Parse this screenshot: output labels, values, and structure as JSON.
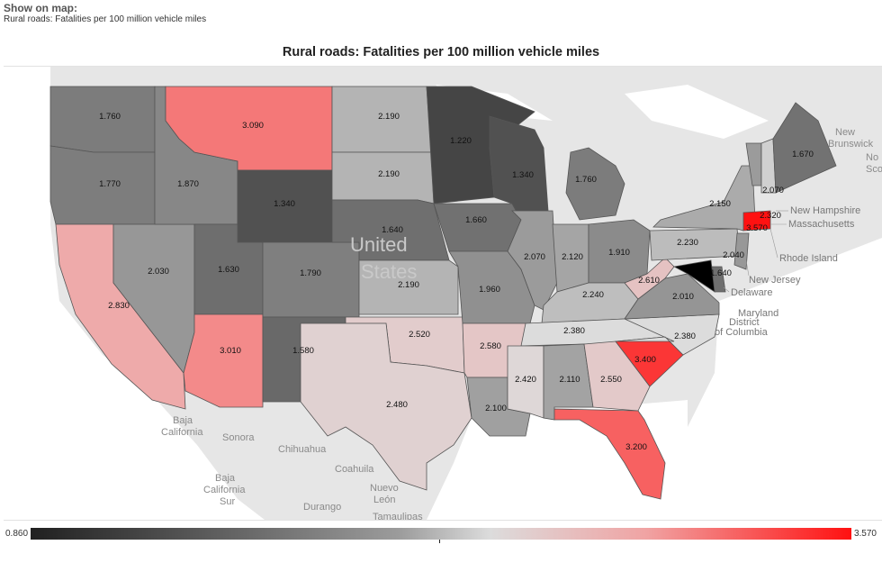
{
  "header": {
    "show_label": "Show on map:",
    "selected_metric": "Rural roads: Fatalities per 100 million vehicle miles"
  },
  "map": {
    "title": "Rural roads: Fatalities per 100 million vehicle miles",
    "colors": {
      "low": "#202020",
      "mid": "#dcdcdc",
      "high": "#ff1111",
      "land": "#e4e4e4",
      "water": "#ffffff"
    },
    "states": [
      {
        "code": "WA",
        "value": "1.760"
      },
      {
        "code": "OR",
        "value": "1.770"
      },
      {
        "code": "CA",
        "value": "2.830"
      },
      {
        "code": "ID",
        "value": "1.870"
      },
      {
        "code": "NV",
        "value": "2.030"
      },
      {
        "code": "MT",
        "value": "3.090"
      },
      {
        "code": "WY",
        "value": "1.340"
      },
      {
        "code": "UT",
        "value": "1.630"
      },
      {
        "code": "AZ",
        "value": "3.010"
      },
      {
        "code": "CO",
        "value": "1.790"
      },
      {
        "code": "NM",
        "value": "1.580"
      },
      {
        "code": "ND",
        "value": "2.190"
      },
      {
        "code": "SD",
        "value": "2.190"
      },
      {
        "code": "NE",
        "value": "1.640"
      },
      {
        "code": "KS",
        "value": "2.190"
      },
      {
        "code": "OK",
        "value": "2.520"
      },
      {
        "code": "TX",
        "value": "2.480"
      },
      {
        "code": "MN",
        "value": "1.220"
      },
      {
        "code": "IA",
        "value": "1.660"
      },
      {
        "code": "MO",
        "value": "1.960"
      },
      {
        "code": "AR",
        "value": "2.580"
      },
      {
        "code": "LA",
        "value": "2.100"
      },
      {
        "code": "WI",
        "value": "1.340"
      },
      {
        "code": "IL",
        "value": "2.070"
      },
      {
        "code": "MI",
        "value": "1.760"
      },
      {
        "code": "IN",
        "value": "2.120"
      },
      {
        "code": "OH",
        "value": "1.910"
      },
      {
        "code": "KY",
        "value": "2.240"
      },
      {
        "code": "TN",
        "value": "2.380"
      },
      {
        "code": "MS",
        "value": "2.420"
      },
      {
        "code": "AL",
        "value": "2.110"
      },
      {
        "code": "GA",
        "value": "2.550"
      },
      {
        "code": "FL",
        "value": "3.200"
      },
      {
        "code": "SC",
        "value": "3.400"
      },
      {
        "code": "NC",
        "value": "2.380"
      },
      {
        "code": "VA",
        "value": "2.010"
      },
      {
        "code": "WV",
        "value": "2.610"
      },
      {
        "code": "PA",
        "value": "2.230"
      },
      {
        "code": "NY",
        "value": "2.150"
      },
      {
        "code": "VT",
        "value": "2.070"
      },
      {
        "code": "NH",
        "value": "2.320"
      },
      {
        "code": "ME",
        "value": "1.670"
      },
      {
        "code": "CT",
        "value": "3.570"
      },
      {
        "code": "NJ",
        "value": "2.040"
      },
      {
        "code": "DE",
        "value": "1.640"
      }
    ],
    "place_labels": {
      "united": "United",
      "states": "States",
      "baja_california": "Baja",
      "baja_california2": "California",
      "sonora": "Sonora",
      "chihuahua": "Chihuahua",
      "coahuila": "Coahuila",
      "nuevo": "Nuevo",
      "leon": "León",
      "durango": "Durango",
      "baja_sur1": "Baja",
      "baja_sur2": "California",
      "baja_sur3": "Sur",
      "tamaulipas": "Tamaulipas",
      "new": "New",
      "brunswick": "Brunswick",
      "nova": "No",
      "sco": "Sco"
    },
    "ne_labels": {
      "new_hampshire": "New Hampshire",
      "massachusetts": "Massachusetts",
      "rhode_island": "Rhode Island",
      "new_jersey": "New Jersey",
      "delaware": "Delaware",
      "maryland": "Maryland",
      "district": "District",
      "of_columbia": "of Columbia"
    }
  },
  "legend": {
    "min": "0.860",
    "max": "3.570"
  }
}
